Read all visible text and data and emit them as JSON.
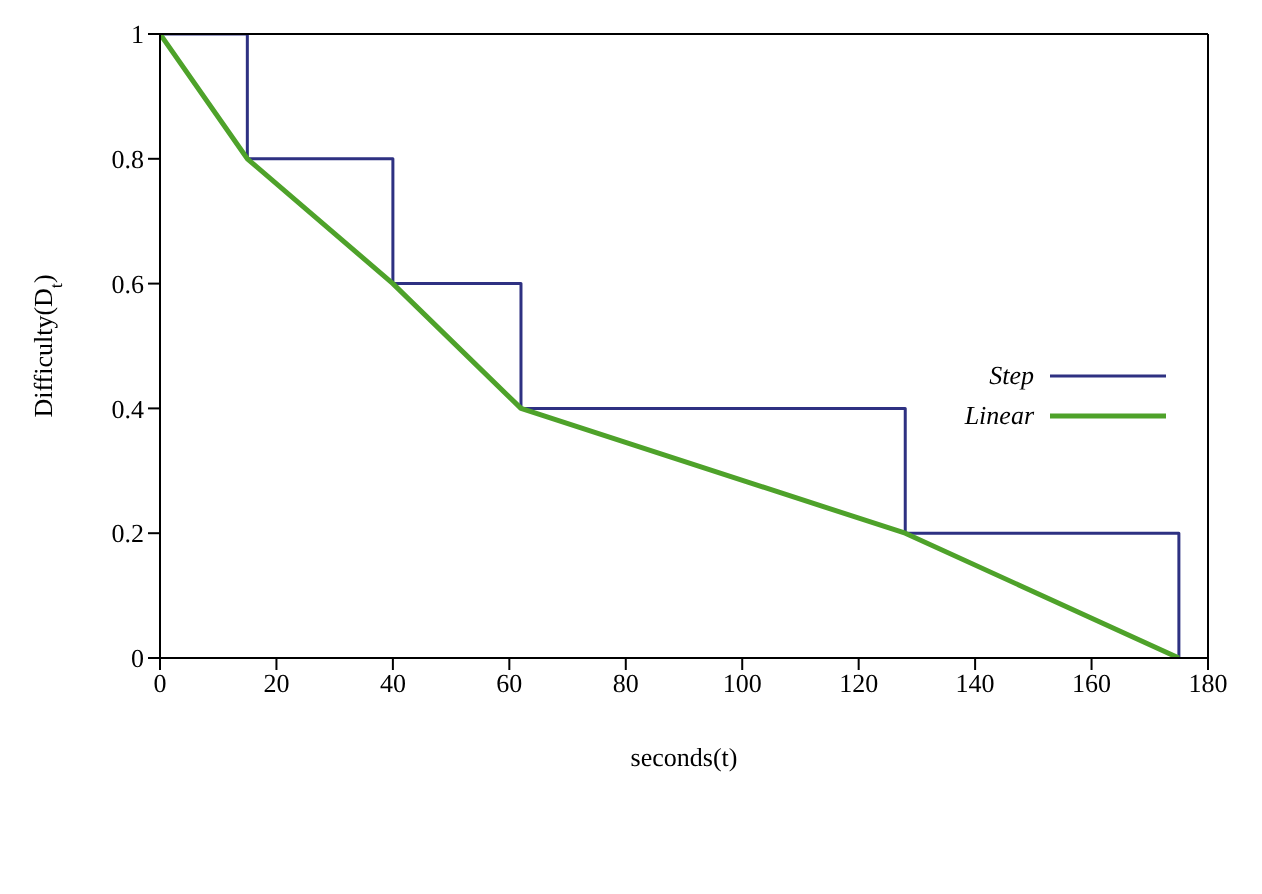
{
  "chart_data": {
    "type": "line",
    "xlabel": "seconds(t)",
    "ylabel": "Difficulty(D$_{t}$)",
    "xlim": [
      0,
      180
    ],
    "xticks": [
      0,
      20,
      40,
      60,
      80,
      100,
      120,
      140,
      160,
      180
    ],
    "ylim": [
      0,
      1
    ],
    "yticks": [
      0,
      0.2,
      0.4,
      0.6,
      0.8,
      1
    ],
    "grid": false,
    "legend": "right",
    "marker": "none",
    "line_style": "solid",
    "series": [
      {
        "name": "Step",
        "type": "step",
        "color": "#2e3182",
        "x": [
          0,
          15,
          40,
          62,
          128,
          175
        ],
        "values": [
          1,
          0.8,
          0.6,
          0.4,
          0.2,
          0
        ]
      },
      {
        "name": "Linear",
        "color": "#4ea22a",
        "x": [
          0,
          15,
          40,
          62,
          128,
          175
        ],
        "values": [
          1,
          0.8,
          0.6,
          0.4,
          0.2,
          0
        ]
      }
    ]
  }
}
